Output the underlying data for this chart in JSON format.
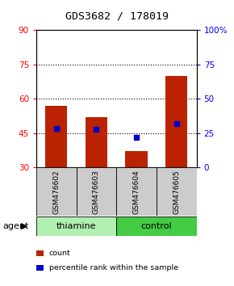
{
  "title": "GDS3682 / 178019",
  "samples": [
    "GSM476602",
    "GSM476603",
    "GSM476604",
    "GSM476605"
  ],
  "bar_bottom": 30,
  "bar_tops": [
    57,
    52,
    37,
    70
  ],
  "blue_values": [
    47.0,
    46.5,
    43.0,
    49.0
  ],
  "bar_color": "#bb2200",
  "blue_color": "#0000cc",
  "ylim": [
    30,
    90
  ],
  "y2lim": [
    0,
    100
  ],
  "yticks": [
    30,
    45,
    60,
    75,
    90
  ],
  "y2ticks": [
    0,
    25,
    50,
    75,
    100
  ],
  "y2ticklabels": [
    "0",
    "25",
    "50",
    "75",
    "100%"
  ],
  "dotted_lines": [
    45,
    60,
    75
  ],
  "groups": [
    {
      "label": "thiamine",
      "samples": [
        0,
        1
      ],
      "color": "#b2f0b2"
    },
    {
      "label": "control",
      "samples": [
        2,
        3
      ],
      "color": "#44cc44"
    }
  ],
  "agent_label": "agent",
  "legend_items": [
    {
      "label": "count",
      "color": "#bb2200"
    },
    {
      "label": "percentile rank within the sample",
      "color": "#0000cc"
    }
  ],
  "background_color": "#ffffff",
  "plot_bg": "#ffffff",
  "label_area_color": "#cccccc",
  "bar_width": 0.55
}
